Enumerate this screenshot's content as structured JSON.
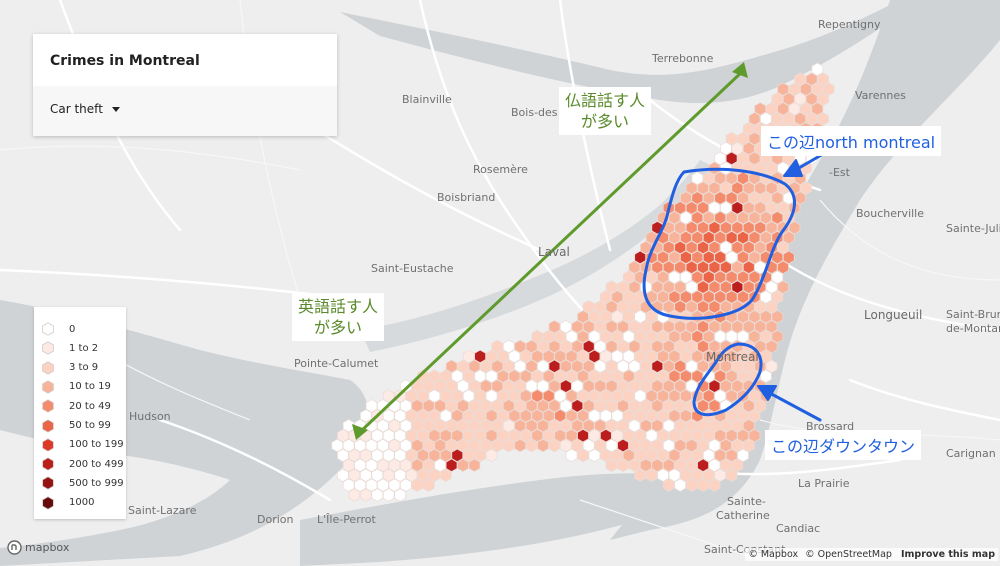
{
  "panel": {
    "title": "Crimes in Montreal",
    "selected_category": "Car theft"
  },
  "legend": [
    {
      "label": "0",
      "color": "#ffffff"
    },
    {
      "label": "1 to 2",
      "color": "#fdeae4"
    },
    {
      "label": "3 to 9",
      "color": "#fcd3c3"
    },
    {
      "label": "10 to 19",
      "color": "#f8b39b"
    },
    {
      "label": "20 to 49",
      "color": "#f48b6d"
    },
    {
      "label": "50 to 99",
      "color": "#ec6448"
    },
    {
      "label": "100 to 199",
      "color": "#dc3929"
    },
    {
      "label": "200 to 499",
      "color": "#bc1e1e"
    },
    {
      "label": "500 to 999",
      "color": "#961313"
    },
    {
      "label": "1000",
      "color": "#660b0b"
    }
  ],
  "places": [
    {
      "name": "Repentigny"
    },
    {
      "name": "Terrebonne"
    },
    {
      "name": "Blainville"
    },
    {
      "name": "Bois-des"
    },
    {
      "name": "Varennes"
    },
    {
      "name": "Rosemère"
    },
    {
      "name": "Boisbriand"
    },
    {
      "name": "Boucherville"
    },
    {
      "name": "Sainte-Juli"
    },
    {
      "name": "Laval"
    },
    {
      "name": "Saint-Eustache"
    },
    {
      "name": "Longueuil"
    },
    {
      "name": "Saint-Bruno"
    },
    {
      "name": "de-Montarvi"
    },
    {
      "name": "Pointe-Calumet"
    },
    {
      "name": "Montreal"
    },
    {
      "name": "Hudson"
    },
    {
      "name": "Brossard"
    },
    {
      "name": "Carignan"
    },
    {
      "name": "Saint-Lazare"
    },
    {
      "name": "Dorion"
    },
    {
      "name": "L'Île-Perrot"
    },
    {
      "name": "La Prairie"
    },
    {
      "name": "Sainte-"
    },
    {
      "name": "Catherine"
    },
    {
      "name": "Candiac"
    },
    {
      "name": "Saint-Constant"
    },
    {
      "name": "-Est"
    }
  ],
  "annotations": {
    "french": {
      "line1": "仏語話す人",
      "line2": "が多い"
    },
    "english": {
      "line1": "英語話す人",
      "line2": "が多い"
    },
    "north": "この辺north montreal",
    "downtown": "この辺ダウンタウン"
  },
  "annotation_colors": {
    "green": "#5f9a2c",
    "blue": "#1f5fe0"
  },
  "attribution": {
    "mapbox": "© Mapbox",
    "osm": "© OpenStreetMap",
    "improve": "Improve this map"
  },
  "logo": "mapbox"
}
